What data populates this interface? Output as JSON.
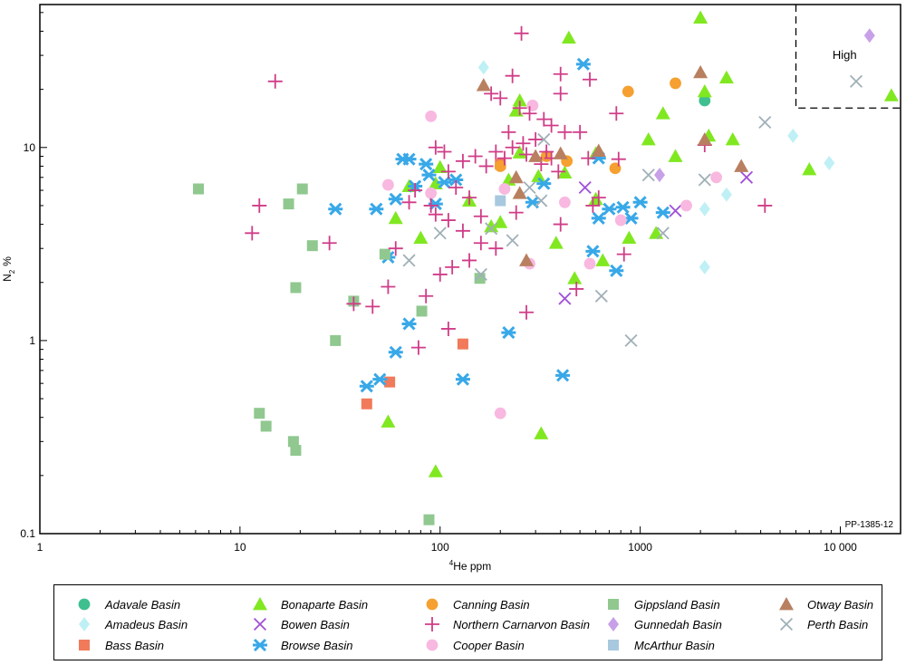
{
  "chart_data": {
    "type": "scatter",
    "title": "",
    "xlabel": "He ppm",
    "xlabel_superscript": "4",
    "ylabel": "N",
    "ylabel_subscript": "2",
    "ylabel_unit": "%",
    "xscale": "log",
    "yscale": "log",
    "xlim": [
      1,
      20000
    ],
    "ylim": [
      0.1,
      55
    ],
    "x_ticks": [
      {
        "value": 1,
        "label": "1"
      },
      {
        "value": 10,
        "label": "10"
      },
      {
        "value": 100,
        "label": "100"
      },
      {
        "value": 1000,
        "label": "1000"
      },
      {
        "value": 10000,
        "label": "10 000"
      }
    ],
    "y_ticks": [
      {
        "value": 0.1,
        "label": "0.1"
      },
      {
        "value": 1,
        "label": "1"
      },
      {
        "value": 10,
        "label": "10"
      }
    ],
    "grid": false,
    "legend_placement": "bottom",
    "annotation": {
      "label": "High",
      "x_range": [
        6000,
        20000
      ],
      "y_range": [
        16,
        55
      ]
    },
    "figure_id": "PP-1385-12",
    "series": [
      {
        "name": "Adavale Basin",
        "marker": "circle",
        "color": "#3fbf8f",
        "points": [
          [
            2100,
            17.5
          ]
        ]
      },
      {
        "name": "Amadeus Basin",
        "marker": "diamond",
        "color": "#bff0f5",
        "points": [
          [
            165,
            26
          ],
          [
            5800,
            11.5
          ],
          [
            8800,
            8.3
          ],
          [
            2100,
            4.8
          ],
          [
            2100,
            2.4
          ],
          [
            2700,
            5.7
          ]
        ]
      },
      {
        "name": "Bass Basin",
        "marker": "square",
        "color": "#f07a5a",
        "points": [
          [
            200,
            8.2
          ],
          [
            130,
            0.96
          ],
          [
            56,
            0.61
          ],
          [
            43,
            0.47
          ]
        ]
      },
      {
        "name": "Bonaparte Basin",
        "marker": "triangle",
        "color": "#80e820",
        "points": [
          [
            2000,
            47
          ],
          [
            440,
            37
          ],
          [
            18000,
            18.6
          ],
          [
            2700,
            23
          ],
          [
            2100,
            19.5
          ],
          [
            250,
            17.5
          ],
          [
            240,
            15.5
          ],
          [
            1300,
            15
          ],
          [
            1100,
            11
          ],
          [
            2200,
            11.5
          ],
          [
            2900,
            11
          ],
          [
            1500,
            9
          ],
          [
            7000,
            7.7
          ],
          [
            250,
            9.4
          ],
          [
            310,
            7.1
          ],
          [
            420,
            7.4
          ],
          [
            600,
            9.3
          ],
          [
            100,
            7.9
          ],
          [
            95,
            6.5
          ],
          [
            600,
            5.4
          ],
          [
            70,
            6.3
          ],
          [
            220,
            6.8
          ],
          [
            140,
            5.3
          ],
          [
            60,
            4.3
          ],
          [
            180,
            3.9
          ],
          [
            200,
            4.1
          ],
          [
            80,
            3.4
          ],
          [
            380,
            3.2
          ],
          [
            880,
            3.4
          ],
          [
            650,
            2.6
          ],
          [
            470,
            2.1
          ],
          [
            1200,
            3.6
          ],
          [
            55,
            0.38
          ],
          [
            320,
            0.33
          ],
          [
            95,
            0.21
          ]
        ]
      },
      {
        "name": "Bowen Basin",
        "marker": "x",
        "color": "#a050d8",
        "points": [
          [
            420,
            1.65
          ],
          [
            3400,
            7
          ],
          [
            1500,
            4.7
          ],
          [
            530,
            6.2
          ]
        ]
      },
      {
        "name": "Browse Basin",
        "marker": "star",
        "color": "#38a8e8",
        "points": [
          [
            520,
            27
          ],
          [
            30,
            4.8
          ],
          [
            48,
            4.8
          ],
          [
            55,
            2.7
          ],
          [
            60,
            5.4
          ],
          [
            65,
            8.7
          ],
          [
            70,
            8.7
          ],
          [
            75,
            6.3
          ],
          [
            85,
            8.2
          ],
          [
            88,
            7.2
          ],
          [
            95,
            5.1
          ],
          [
            105,
            6.6
          ],
          [
            120,
            6.8
          ],
          [
            290,
            5.2
          ],
          [
            330,
            6.5
          ],
          [
            620,
            8.8
          ],
          [
            620,
            4.3
          ],
          [
            700,
            4.8
          ],
          [
            820,
            4.9
          ],
          [
            900,
            4.3
          ],
          [
            1000,
            5.2
          ],
          [
            1300,
            4.6
          ],
          [
            580,
            2.9
          ],
          [
            760,
            2.3
          ],
          [
            70,
            1.22
          ],
          [
            60,
            0.87
          ],
          [
            50,
            0.63
          ],
          [
            43,
            0.58
          ],
          [
            130,
            0.63
          ],
          [
            220,
            1.1
          ],
          [
            410,
            0.66
          ]
        ]
      },
      {
        "name": "Canning Basin",
        "marker": "circle",
        "color": "#f5a030",
        "points": [
          [
            870,
            19.5
          ],
          [
            1500,
            21.5
          ],
          [
            340,
            9
          ],
          [
            430,
            8.5
          ],
          [
            750,
            7.8
          ],
          [
            200,
            8
          ]
        ]
      },
      {
        "name": "Cooper Basin",
        "marker": "circle",
        "color": "#f8b8e0",
        "points": [
          [
            90,
            14.5
          ],
          [
            290,
            16.5
          ],
          [
            2400,
            7
          ],
          [
            1700,
            5
          ],
          [
            420,
            5.2
          ],
          [
            90,
            5.8
          ],
          [
            55,
            6.4
          ],
          [
            210,
            6.1
          ],
          [
            800,
            4.2
          ],
          [
            560,
            2.5
          ],
          [
            280,
            2.5
          ],
          [
            200,
            0.42
          ]
        ]
      },
      {
        "name": "Gippsland Basin",
        "marker": "square",
        "color": "#90c890",
        "points": [
          [
            6.2,
            6.1
          ],
          [
            17.5,
            5.1
          ],
          [
            20.5,
            6.1
          ],
          [
            23,
            3.1
          ],
          [
            19,
            1.88
          ],
          [
            37,
            1.6
          ],
          [
            30,
            1.0
          ],
          [
            81,
            1.42
          ],
          [
            53,
            2.8
          ],
          [
            158,
            2.1
          ],
          [
            12.5,
            0.42
          ],
          [
            13.5,
            0.36
          ],
          [
            18.5,
            0.3
          ],
          [
            19,
            0.27
          ],
          [
            88,
            0.118
          ]
        ]
      },
      {
        "name": "Gunnedah Basin",
        "marker": "diamond",
        "color": "#c8a0e8",
        "points": [
          [
            14000,
            38
          ],
          [
            1250,
            7.2
          ]
        ]
      },
      {
        "name": "McArthur Basin",
        "marker": "square",
        "color": "#a8c8e0",
        "points": [
          [
            200,
            5.3
          ]
        ]
      },
      {
        "name": "Northern Carnarvon Basin",
        "marker": "plus",
        "color": "#d03c88",
        "points": [
          [
            255,
            39
          ],
          [
            15,
            22
          ],
          [
            400,
            24
          ],
          [
            560,
            22.5
          ],
          [
            230,
            23.5
          ],
          [
            180,
            19
          ],
          [
            200,
            18
          ],
          [
            250,
            16
          ],
          [
            280,
            15
          ],
          [
            330,
            14
          ],
          [
            360,
            13
          ],
          [
            400,
            19
          ],
          [
            220,
            12
          ],
          [
            260,
            10.5
          ],
          [
            300,
            11
          ],
          [
            340,
            9.5
          ],
          [
            420,
            12
          ],
          [
            500,
            12
          ],
          [
            760,
            15
          ],
          [
            150,
            9
          ],
          [
            170,
            8
          ],
          [
            190,
            9.5
          ],
          [
            210,
            8.8
          ],
          [
            230,
            10
          ],
          [
            270,
            9.2
          ],
          [
            320,
            8.2
          ],
          [
            360,
            8.8
          ],
          [
            390,
            7.5
          ],
          [
            130,
            8.5
          ],
          [
            95,
            10
          ],
          [
            105,
            9.5
          ],
          [
            110,
            7.5
          ],
          [
            120,
            6.2
          ],
          [
            140,
            5.5
          ],
          [
            90,
            5
          ],
          [
            75,
            6
          ],
          [
            70,
            5.2
          ],
          [
            12.5,
            5
          ],
          [
            11.5,
            3.6
          ],
          [
            28,
            3.2
          ],
          [
            60,
            3
          ],
          [
            95,
            4.5
          ],
          [
            110,
            4.2
          ],
          [
            130,
            3.7
          ],
          [
            160,
            3.2
          ],
          [
            190,
            3
          ],
          [
            140,
            2.6
          ],
          [
            100,
            2.2
          ],
          [
            115,
            2.4
          ],
          [
            85,
            1.7
          ],
          [
            110,
            1.15
          ],
          [
            78,
            0.92
          ],
          [
            55,
            1.9
          ],
          [
            46,
            1.5
          ],
          [
            37,
            1.55
          ],
          [
            240,
            4.6
          ],
          [
            270,
            1.4
          ],
          [
            160,
            4.4
          ],
          [
            400,
            4
          ],
          [
            580,
            5
          ],
          [
            480,
            1.85
          ],
          [
            620,
            5.5
          ],
          [
            780,
            8.7
          ],
          [
            830,
            2.8
          ],
          [
            2100,
            10.3
          ],
          [
            4200,
            5
          ],
          [
            550,
            8.8
          ]
        ]
      },
      {
        "name": "Otway Basin",
        "marker": "triangle",
        "color": "#b88060",
        "points": [
          [
            2000,
            24.5
          ],
          [
            165,
            21
          ],
          [
            240,
            7
          ],
          [
            300,
            9
          ],
          [
            400,
            9.3
          ],
          [
            620,
            9.6
          ],
          [
            2100,
            11
          ],
          [
            3200,
            8
          ],
          [
            250,
            5.8
          ],
          [
            270,
            2.6
          ]
        ]
      },
      {
        "name": "Perth Basin",
        "marker": "x",
        "color": "#a0b0b8",
        "points": [
          [
            12000,
            22
          ],
          [
            4200,
            13.5
          ],
          [
            1100,
            7.2
          ],
          [
            2100,
            6.8
          ],
          [
            330,
            11
          ],
          [
            320,
            5.3
          ],
          [
            280,
            6.2
          ],
          [
            1300,
            3.6
          ],
          [
            230,
            3.3
          ],
          [
            180,
            3.8
          ],
          [
            100,
            3.6
          ],
          [
            70,
            2.6
          ],
          [
            640,
            1.7
          ],
          [
            900,
            1.0
          ],
          [
            160,
            2.2
          ]
        ]
      }
    ]
  }
}
